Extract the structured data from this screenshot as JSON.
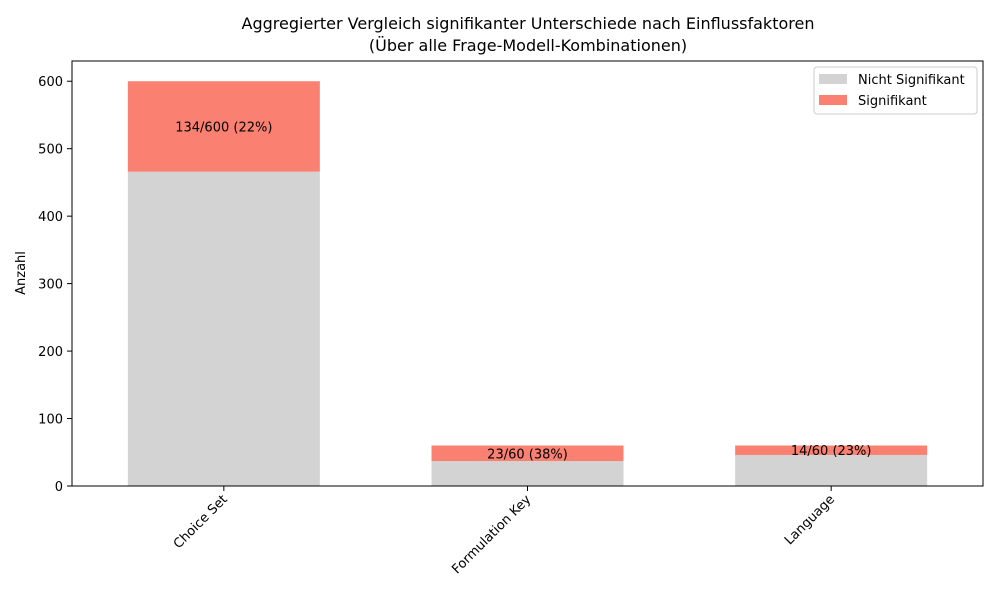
{
  "chart_data": {
    "type": "bar",
    "stacked": true,
    "title": "Aggregierter Vergleich signifikanter Unterschiede nach Einflussfaktoren",
    "subtitle": "(Über alle Frage-Modell-Kombinationen)",
    "xlabel": "",
    "ylabel": "Anzahl",
    "ylim": [
      0,
      630
    ],
    "yticks": [
      0,
      100,
      200,
      300,
      400,
      500,
      600
    ],
    "categories": [
      "Choice Set",
      "Formulation Key",
      "Language"
    ],
    "series": [
      {
        "name": "Nicht Signifikant",
        "values": [
          466,
          37,
          46
        ],
        "color": "#d3d3d3"
      },
      {
        "name": "Signifikant",
        "values": [
          134,
          23,
          14
        ],
        "color": "#fa8072"
      }
    ],
    "data_labels": [
      "134/600 (22%)",
      "23/60 (38%)",
      "14/60 (23%)"
    ],
    "legend": {
      "position": "top-right"
    },
    "grid": false
  }
}
